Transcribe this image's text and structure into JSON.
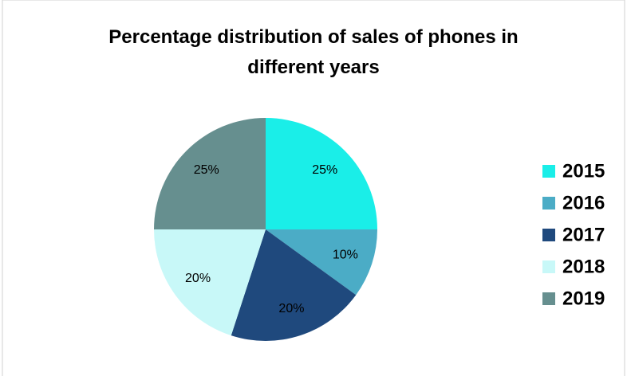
{
  "chart_data": {
    "type": "pie",
    "title": "Percentage distribution of sales of phones in different years",
    "categories": [
      "2015",
      "2016",
      "2017",
      "2018",
      "2019"
    ],
    "values": [
      25,
      10,
      20,
      20,
      25
    ],
    "value_labels": [
      "25%",
      "10%",
      "20%",
      "20%",
      "25%"
    ],
    "colors": [
      "#1aeee8",
      "#4bacc6",
      "#1f497d",
      "#c8f8f8",
      "#668f8f"
    ],
    "legend": "right"
  }
}
